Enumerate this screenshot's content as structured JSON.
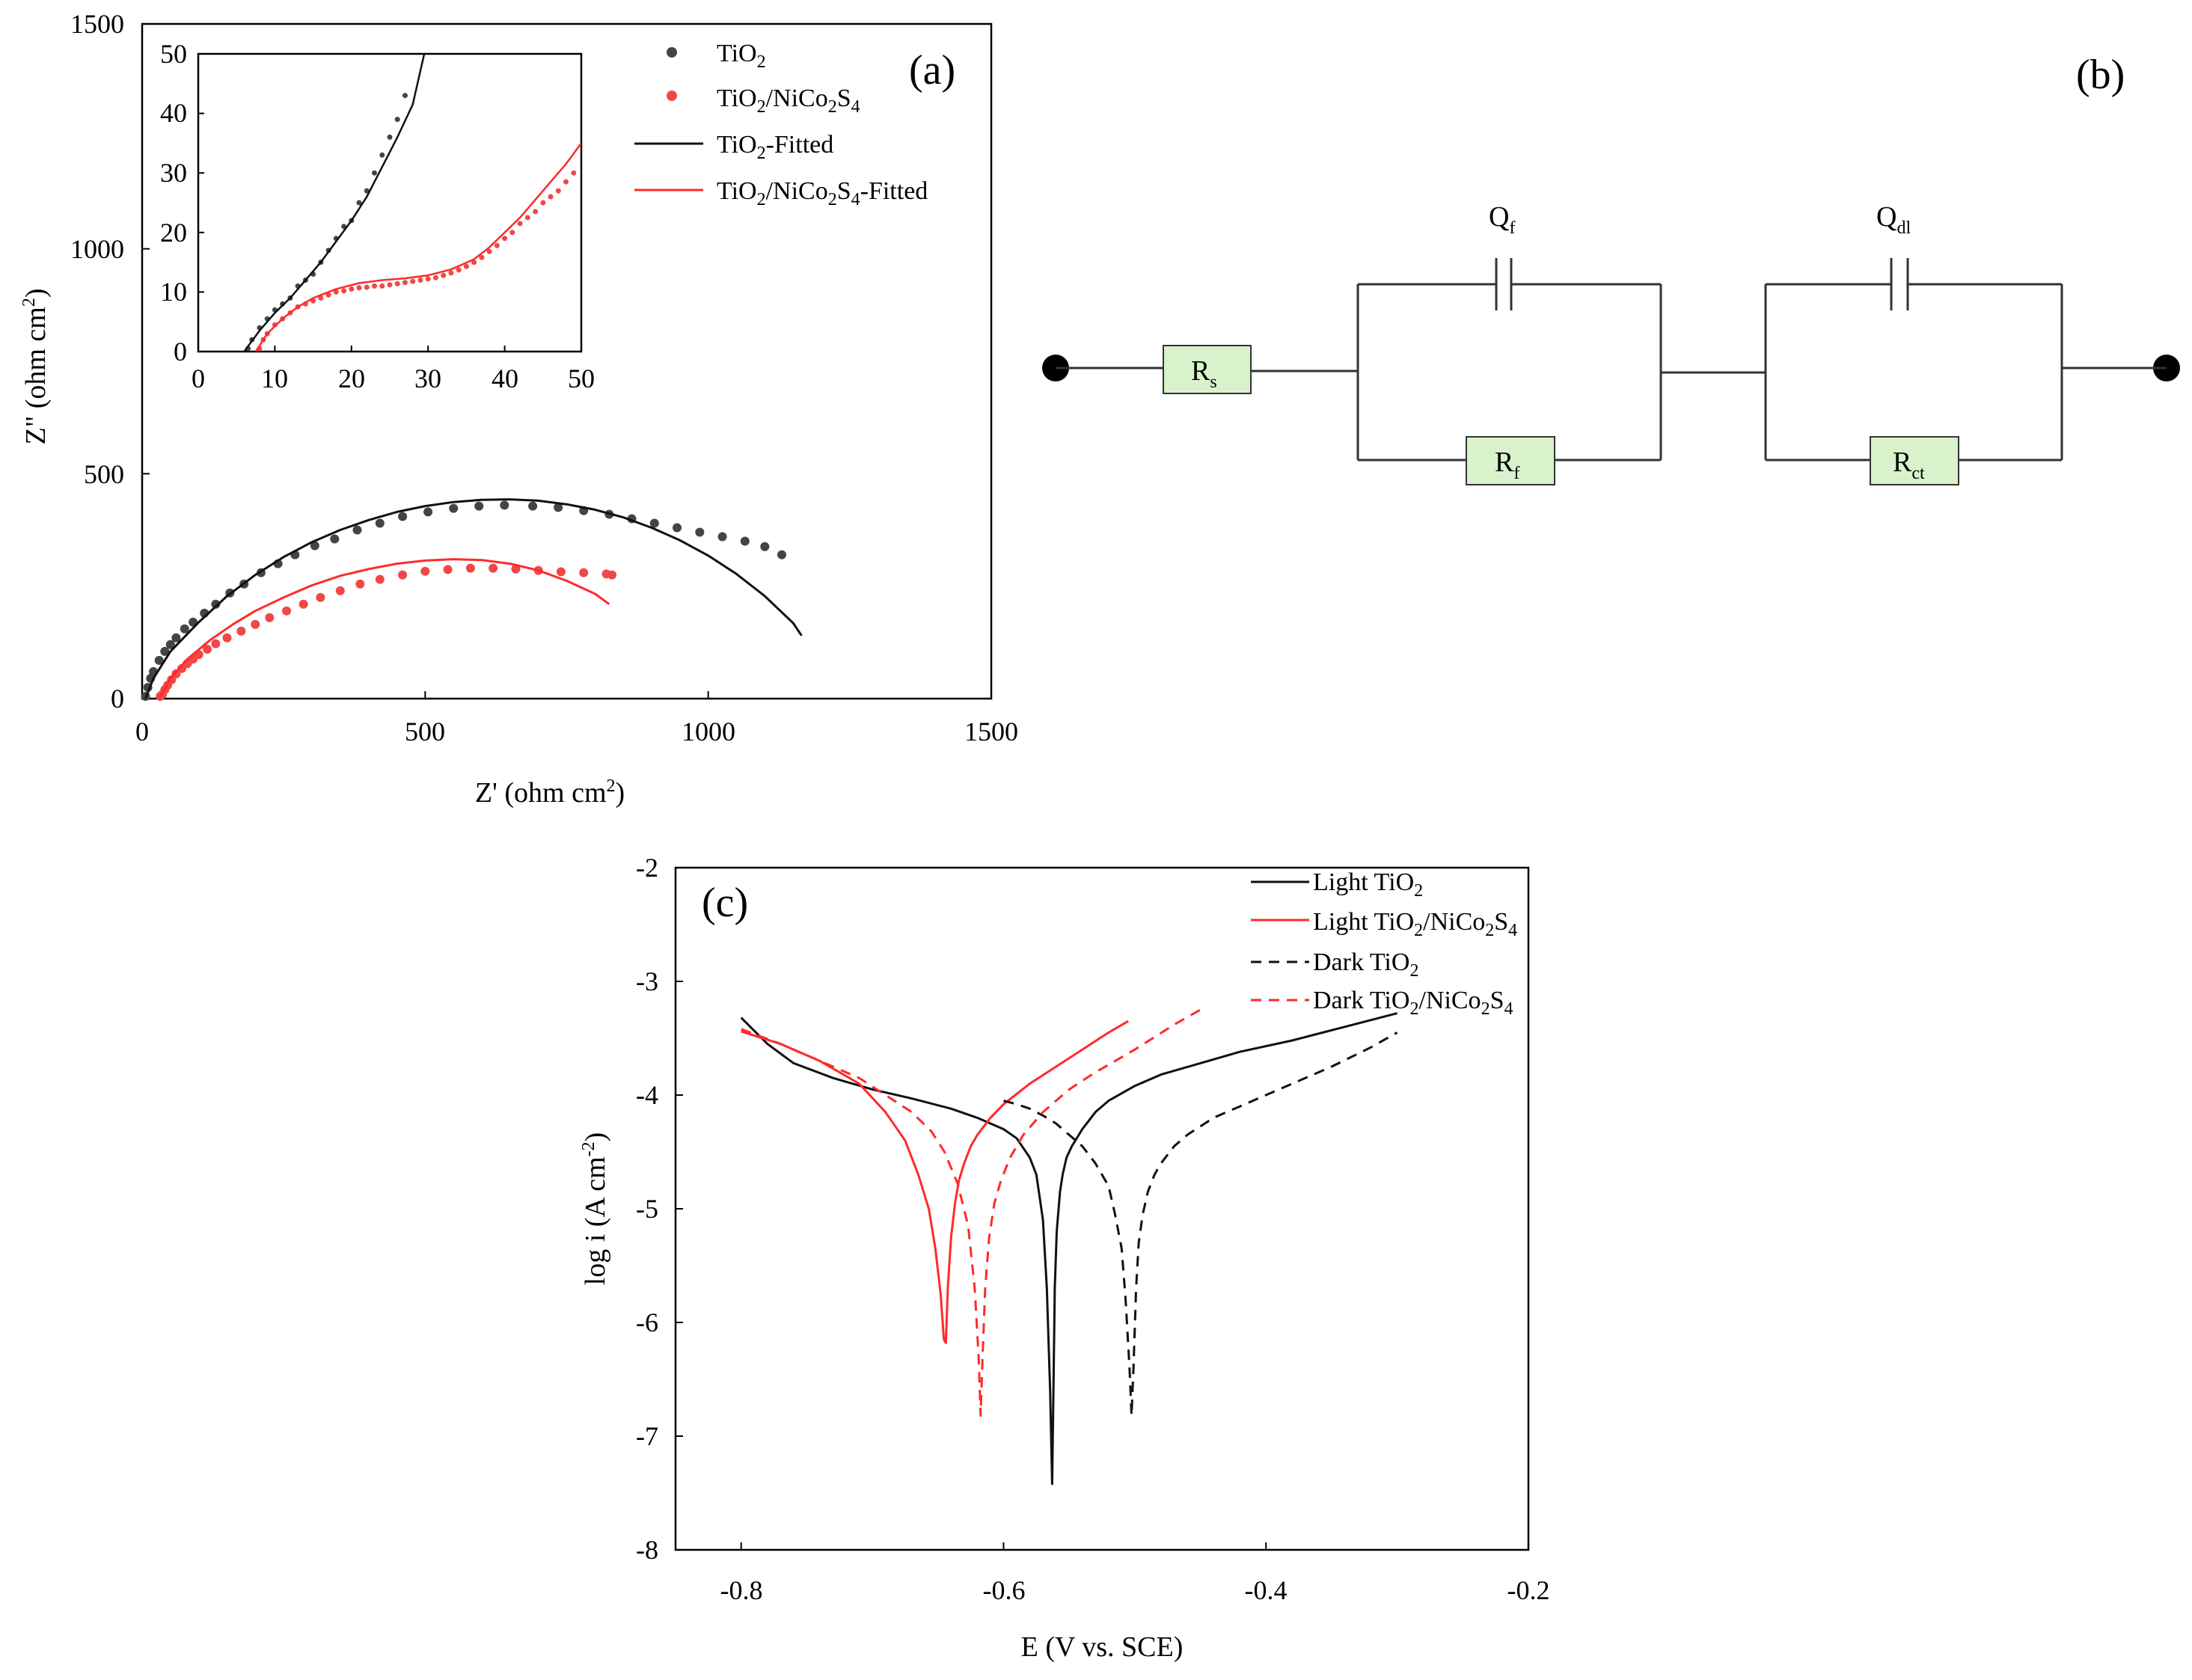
{
  "colors": {
    "tio2": "#111111",
    "tio2_marker": "#444444",
    "composite": "#ff2a2a",
    "composite_marker": "#f04848",
    "element_fill": "#d8f3cc"
  },
  "panel_a": {
    "label": "(a)",
    "xlabel": "Z' (ohm cm2)",
    "ylabel": "Z\" (ohm cm2)",
    "legend": [
      "TiO2",
      "TiO2/NiCo2S4",
      "TiO2-Fitted",
      "TiO2/NiCo2S4-Fitted"
    ],
    "chart_data": {
      "type": "scatter",
      "title": "",
      "xlim": [
        0,
        1500
      ],
      "ylim": [
        0,
        1500
      ],
      "xticks": [
        "0",
        "500",
        "1000",
        "1500"
      ],
      "yticks": [
        "0",
        "500",
        "1000",
        "1500"
      ],
      "series": [
        {
          "name": "TiO2",
          "kind": "markers",
          "x": [
            6,
            10,
            15,
            20,
            30,
            40,
            50,
            60,
            75,
            90,
            110,
            130,
            155,
            180,
            210,
            240,
            270,
            305,
            340,
            380,
            420,
            460,
            505,
            550,
            595,
            640,
            690,
            735,
            780,
            825,
            865,
            905,
            945,
            985,
            1025,
            1065,
            1100,
            1130
          ],
          "y": [
            5,
            25,
            45,
            60,
            85,
            105,
            120,
            135,
            155,
            170,
            190,
            210,
            235,
            255,
            280,
            300,
            320,
            340,
            355,
            375,
            390,
            405,
            415,
            423,
            428,
            430,
            428,
            425,
            418,
            410,
            400,
            390,
            380,
            370,
            360,
            350,
            338,
            320
          ]
        },
        {
          "name": "TiO2/NiCo2S4",
          "kind": "markers",
          "x": [
            32,
            36,
            40,
            45,
            52,
            60,
            70,
            80,
            90,
            100,
            115,
            130,
            150,
            175,
            200,
            225,
            255,
            285,
            315,
            350,
            385,
            420,
            460,
            500,
            540,
            580,
            620,
            660,
            700,
            740,
            780,
            820,
            830
          ],
          "y": [
            5,
            10,
            20,
            30,
            42,
            55,
            67,
            78,
            88,
            98,
            110,
            122,
            135,
            150,
            165,
            180,
            195,
            210,
            225,
            240,
            255,
            265,
            275,
            283,
            287,
            290,
            290,
            288,
            285,
            282,
            280,
            277,
            275
          ]
        },
        {
          "name": "TiO2-Fitted",
          "kind": "line",
          "x": [
            6,
            20,
            50,
            100,
            150,
            200,
            250,
            300,
            350,
            400,
            450,
            500,
            550,
            600,
            650,
            700,
            750,
            800,
            850,
            900,
            950,
            1000,
            1050,
            1100,
            1150,
            1165
          ],
          "y": [
            0,
            45,
            105,
            170,
            228,
            275,
            315,
            348,
            375,
            397,
            415,
            428,
            437,
            442,
            443,
            440,
            432,
            420,
            403,
            380,
            352,
            318,
            277,
            228,
            168,
            140
          ]
        },
        {
          "name": "TiO2/NiCo2S4-Fitted",
          "kind": "line",
          "x": [
            30,
            50,
            80,
            120,
            160,
            200,
            250,
            300,
            350,
            400,
            450,
            500,
            550,
            600,
            650,
            700,
            750,
            800,
            825
          ],
          "y": [
            0,
            45,
            88,
            130,
            165,
            195,
            225,
            252,
            273,
            288,
            300,
            307,
            310,
            308,
            300,
            285,
            262,
            233,
            210
          ]
        }
      ]
    },
    "inset": {
      "chart_data": {
        "type": "scatter",
        "xlim": [
          0,
          50
        ],
        "ylim": [
          0,
          50
        ],
        "xticks": [
          "0",
          "10",
          "20",
          "30",
          "40",
          "50"
        ],
        "yticks": [
          "0",
          "10",
          "20",
          "30",
          "40",
          "50"
        ],
        "series": [
          {
            "name": "TiO2",
            "kind": "markers",
            "x": [
              6.5,
              7,
              8,
              9,
              10,
              11,
              12,
              13,
              14,
              15,
              16,
              17,
              18,
              19,
              20,
              21,
              22,
              23,
              24,
              25,
              26,
              27
            ],
            "y": [
              0.5,
              2,
              4,
              5.5,
              7,
              8,
              9,
              11,
              12,
              13,
              15,
              17,
              19,
              21,
              22,
              25,
              27,
              30,
              33,
              36,
              39,
              43
            ]
          },
          {
            "name": "TiO2/NiCo2S4",
            "kind": "markers",
            "x": [
              8,
              8.5,
              9,
              10,
              11,
              12,
              13,
              14,
              15,
              16,
              17,
              18,
              19,
              20,
              21,
              22,
              23,
              24,
              25,
              26,
              27,
              28,
              29,
              30,
              31,
              32,
              33,
              34,
              35,
              36,
              37,
              38,
              39,
              40,
              41,
              42,
              43,
              44,
              45,
              46,
              47,
              48,
              49
            ],
            "y": [
              0.5,
              2,
              3,
              4.5,
              5.5,
              6.5,
              7.5,
              8,
              8.5,
              9,
              9.5,
              10,
              10.2,
              10.5,
              10.7,
              10.8,
              11,
              11,
              11.2,
              11.4,
              11.6,
              11.8,
              12,
              12.2,
              12.4,
              12.8,
              13.2,
              13.7,
              14.3,
              15,
              15.8,
              16.8,
              17.8,
              19,
              20,
              21.5,
              22.5,
              23.5,
              25,
              26,
              27,
              28.5,
              30
            ]
          },
          {
            "name": "TiO2-Fitted",
            "kind": "line",
            "x": [
              6,
              8,
              10,
              12,
              14,
              16,
              18,
              20,
              22,
              24,
              26,
              28,
              29.5
            ],
            "y": [
              0,
              3.5,
              6.5,
              9,
              12,
              15,
              18.5,
              22,
              26,
              31,
              36,
              41.5,
              50
            ]
          },
          {
            "name": "TiO2/NiCo2S4-Fitted",
            "kind": "line",
            "x": [
              7.5,
              9,
              11,
              13,
              15,
              18,
              21,
              24,
              27,
              30,
              33,
              36,
              38,
              40,
              42,
              44,
              46,
              48,
              50
            ],
            "y": [
              0,
              3,
              5.5,
              7.5,
              9,
              10.5,
              11.5,
              12,
              12.3,
              12.8,
              13.8,
              15.5,
              17.5,
              20,
              22.5,
              25.5,
              28.5,
              31.5,
              35
            ]
          }
        ]
      }
    }
  },
  "panel_b": {
    "label": "(b)",
    "elements": [
      {
        "name": "Rs",
        "main": "R",
        "sub": "s"
      },
      {
        "name": "Qf",
        "main": "Q",
        "sub": "f"
      },
      {
        "name": "Rf",
        "main": "R",
        "sub": "f"
      },
      {
        "name": "Qdl",
        "main": "Q",
        "sub": "dl"
      },
      {
        "name": "Rct",
        "main": "R",
        "sub": "ct"
      }
    ]
  },
  "panel_c": {
    "label": "(c)",
    "xlabel": "E (V vs. SCE)",
    "ylabel": "log i (A cm-2)",
    "legend": [
      "Light TiO2",
      "Light TiO2/NiCo2S4",
      "Dark TiO2",
      "Dark TiO2/NiCo2S4"
    ],
    "chart_data": {
      "type": "line",
      "xlim": [
        -0.85,
        -0.2
      ],
      "ylim": [
        -8,
        -2
      ],
      "xticks": [
        "-0.8",
        "-0.6",
        "-0.4",
        "-0.2"
      ],
      "yticks": [
        "-2",
        "-3",
        "-4",
        "-5",
        "-6",
        "-7",
        "-8"
      ],
      "series": [
        {
          "name": "Light TiO2",
          "style": "solid",
          "x": [
            -0.8,
            -0.78,
            -0.76,
            -0.73,
            -0.7,
            -0.67,
            -0.64,
            -0.62,
            -0.6,
            -0.59,
            -0.58,
            -0.575,
            -0.57,
            -0.567,
            -0.5645,
            -0.563,
            -0.562,
            -0.561,
            -0.5595,
            -0.557,
            -0.555,
            -0.552,
            -0.548,
            -0.54,
            -0.53,
            -0.52,
            -0.5,
            -0.48,
            -0.45,
            -0.42,
            -0.38,
            -0.34,
            -0.3
          ],
          "y": [
            -3.32,
            -3.55,
            -3.72,
            -3.85,
            -3.95,
            -4.03,
            -4.12,
            -4.2,
            -4.3,
            -4.38,
            -4.55,
            -4.7,
            -5.1,
            -5.7,
            -6.6,
            -7.42,
            -6.6,
            -5.7,
            -5.2,
            -4.85,
            -4.7,
            -4.55,
            -4.45,
            -4.3,
            -4.15,
            -4.05,
            -3.92,
            -3.82,
            -3.72,
            -3.62,
            -3.52,
            -3.4,
            -3.28
          ]
        },
        {
          "name": "Light TiO2/NiCo2S4",
          "style": "solid",
          "x": [
            -0.8,
            -0.77,
            -0.74,
            -0.71,
            -0.69,
            -0.675,
            -0.665,
            -0.657,
            -0.652,
            -0.648,
            -0.6455,
            -0.644,
            -0.6425,
            -0.64,
            -0.637,
            -0.634,
            -0.63,
            -0.625,
            -0.62,
            -0.61,
            -0.6,
            -0.58,
            -0.56,
            -0.54,
            -0.52,
            -0.505
          ],
          "y": [
            -3.44,
            -3.55,
            -3.7,
            -3.9,
            -4.15,
            -4.4,
            -4.7,
            -5.0,
            -5.35,
            -5.75,
            -6.15,
            -6.18,
            -5.7,
            -5.25,
            -4.95,
            -4.75,
            -4.6,
            -4.45,
            -4.35,
            -4.2,
            -4.08,
            -3.9,
            -3.75,
            -3.6,
            -3.45,
            -3.35
          ]
        },
        {
          "name": "Dark TiO2",
          "style": "dashed",
          "x": [
            -0.6,
            -0.59,
            -0.58,
            -0.57,
            -0.56,
            -0.55,
            -0.54,
            -0.53,
            -0.52,
            -0.515,
            -0.51,
            -0.507,
            -0.504,
            -0.5025,
            -0.501,
            -0.499,
            -0.497,
            -0.494,
            -0.49,
            -0.485,
            -0.48,
            -0.47,
            -0.46,
            -0.44,
            -0.42,
            -0.4,
            -0.38,
            -0.35,
            -0.32,
            -0.3
          ],
          "y": [
            -4.05,
            -4.08,
            -4.12,
            -4.18,
            -4.25,
            -4.35,
            -4.45,
            -4.6,
            -4.8,
            -5.05,
            -5.35,
            -5.8,
            -6.4,
            -6.82,
            -6.4,
            -5.7,
            -5.3,
            -5.05,
            -4.85,
            -4.7,
            -4.6,
            -4.45,
            -4.35,
            -4.2,
            -4.1,
            -4.0,
            -3.9,
            -3.75,
            -3.58,
            -3.45
          ]
        },
        {
          "name": "Dark TiO2/NiCo2S4",
          "style": "dashed",
          "x": [
            -0.8,
            -0.77,
            -0.74,
            -0.71,
            -0.69,
            -0.67,
            -0.655,
            -0.645,
            -0.635,
            -0.627,
            -0.622,
            -0.619,
            -0.6175,
            -0.616,
            -0.614,
            -0.611,
            -0.607,
            -0.602,
            -0.595,
            -0.585,
            -0.57,
            -0.55,
            -0.53,
            -0.5,
            -0.47,
            -0.45
          ],
          "y": [
            -3.42,
            -3.55,
            -3.7,
            -3.85,
            -4.0,
            -4.15,
            -4.32,
            -4.5,
            -4.78,
            -5.15,
            -5.7,
            -6.3,
            -6.82,
            -6.3,
            -5.7,
            -5.25,
            -4.95,
            -4.75,
            -4.55,
            -4.35,
            -4.15,
            -3.95,
            -3.8,
            -3.6,
            -3.38,
            -3.25
          ]
        }
      ]
    }
  }
}
